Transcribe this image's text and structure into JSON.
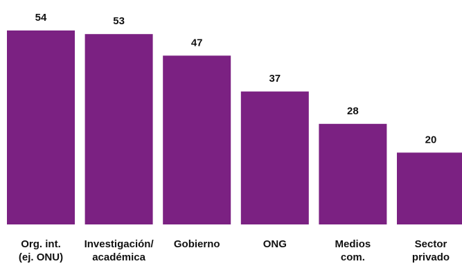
{
  "chart_data": {
    "type": "bar",
    "categories": [
      [
        "Org. int.",
        "(ej. ONU)"
      ],
      [
        "Investigación/",
        "académica"
      ],
      [
        "Gobierno"
      ],
      [
        "ONG"
      ],
      [
        "Medios",
        "com."
      ],
      [
        "Sector",
        "privado"
      ]
    ],
    "values": [
      54,
      53,
      47,
      37,
      28,
      20
    ],
    "ylim": [
      0,
      54
    ],
    "grid": false,
    "legend": "none",
    "bar_color": "#7b2182"
  }
}
